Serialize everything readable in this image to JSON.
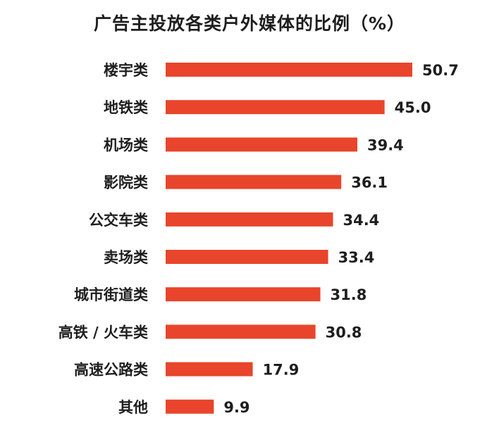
{
  "chart_data": {
    "type": "bar",
    "orientation": "horizontal",
    "title": "广告主投放各类户外媒体的比例（%）",
    "categories": [
      "楼宇类",
      "地铁类",
      "机场类",
      "影院类",
      "公交车类",
      "卖场类",
      "城市街道类",
      "高铁 / 火车类",
      "高速公路类",
      "其他"
    ],
    "values": [
      50.7,
      45.0,
      39.4,
      36.1,
      34.4,
      33.4,
      31.8,
      30.8,
      17.9,
      9.9
    ],
    "value_labels": [
      "50.7",
      "45.0",
      "39.4",
      "36.1",
      "34.4",
      "33.4",
      "31.8",
      "30.8",
      "17.9",
      "9.9"
    ],
    "xlim": [
      0,
      50.7
    ],
    "grid": false,
    "legend": "none",
    "bar_color": "#e8452c"
  }
}
